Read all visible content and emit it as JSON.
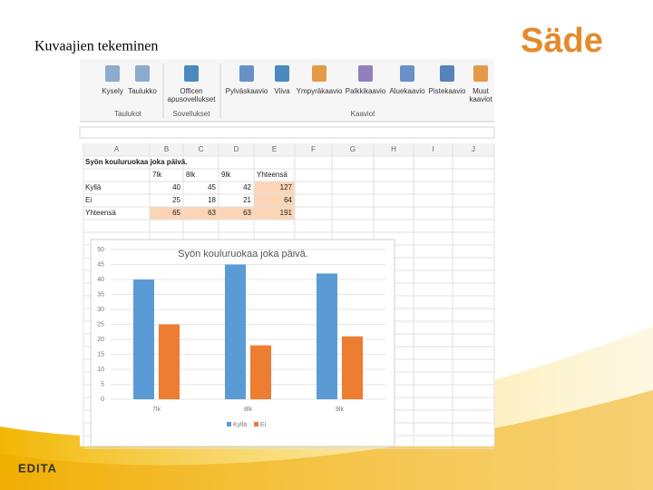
{
  "slide_title": "Kuvaajien tekeminen",
  "logo": "Säde",
  "footer_brand": "EDITA",
  "ribbon": {
    "groups": [
      {
        "name": "Taulukot",
        "buttons": [
          [
            "Kysely"
          ],
          [
            "Taulukko"
          ]
        ]
      },
      {
        "name": "Sovellukset",
        "buttons": [
          [
            "Officen",
            "apusovellukset"
          ]
        ]
      },
      {
        "name": "Kaaviot",
        "buttons": [
          [
            "Pylväskaavio"
          ],
          [
            "Viiva"
          ],
          [
            "Ympyräkaavio"
          ],
          [
            "Palkkikaavio"
          ],
          [
            "Aluekaavio"
          ],
          [
            "Pistekaavio"
          ],
          [
            "Muut",
            "kaaviot"
          ]
        ]
      }
    ]
  },
  "sheet": {
    "columns": [
      "A",
      "B",
      "C",
      "D",
      "E",
      "F",
      "G",
      "H",
      "I",
      "J"
    ],
    "title": "Syön kouluruokaa joka päivä.",
    "header": [
      "7lk",
      "8lk",
      "9lk",
      "Yhteensä"
    ],
    "rows": [
      {
        "label": "Kyllä",
        "values": [
          40,
          45,
          42,
          127
        ]
      },
      {
        "label": "Ei",
        "values": [
          25,
          18,
          21,
          64
        ]
      },
      {
        "label": "Yhteensä",
        "values": [
          65,
          63,
          63,
          191
        ]
      }
    ]
  },
  "chart_data": {
    "type": "bar",
    "title": "Syön kouluruokaa joka päivä.",
    "categories": [
      "7lk",
      "8lk",
      "9lk"
    ],
    "series": [
      {
        "name": "Kyllä",
        "color": "#5b9bd5",
        "values": [
          40,
          45,
          42
        ]
      },
      {
        "name": "Ei",
        "color": "#ed7d31",
        "values": [
          25,
          18,
          21
        ]
      }
    ],
    "ylim": [
      0,
      50
    ],
    "yticks": [
      0,
      5,
      10,
      15,
      20,
      25,
      30,
      35,
      40,
      45,
      50
    ],
    "grid": true,
    "legend": "bottom"
  }
}
